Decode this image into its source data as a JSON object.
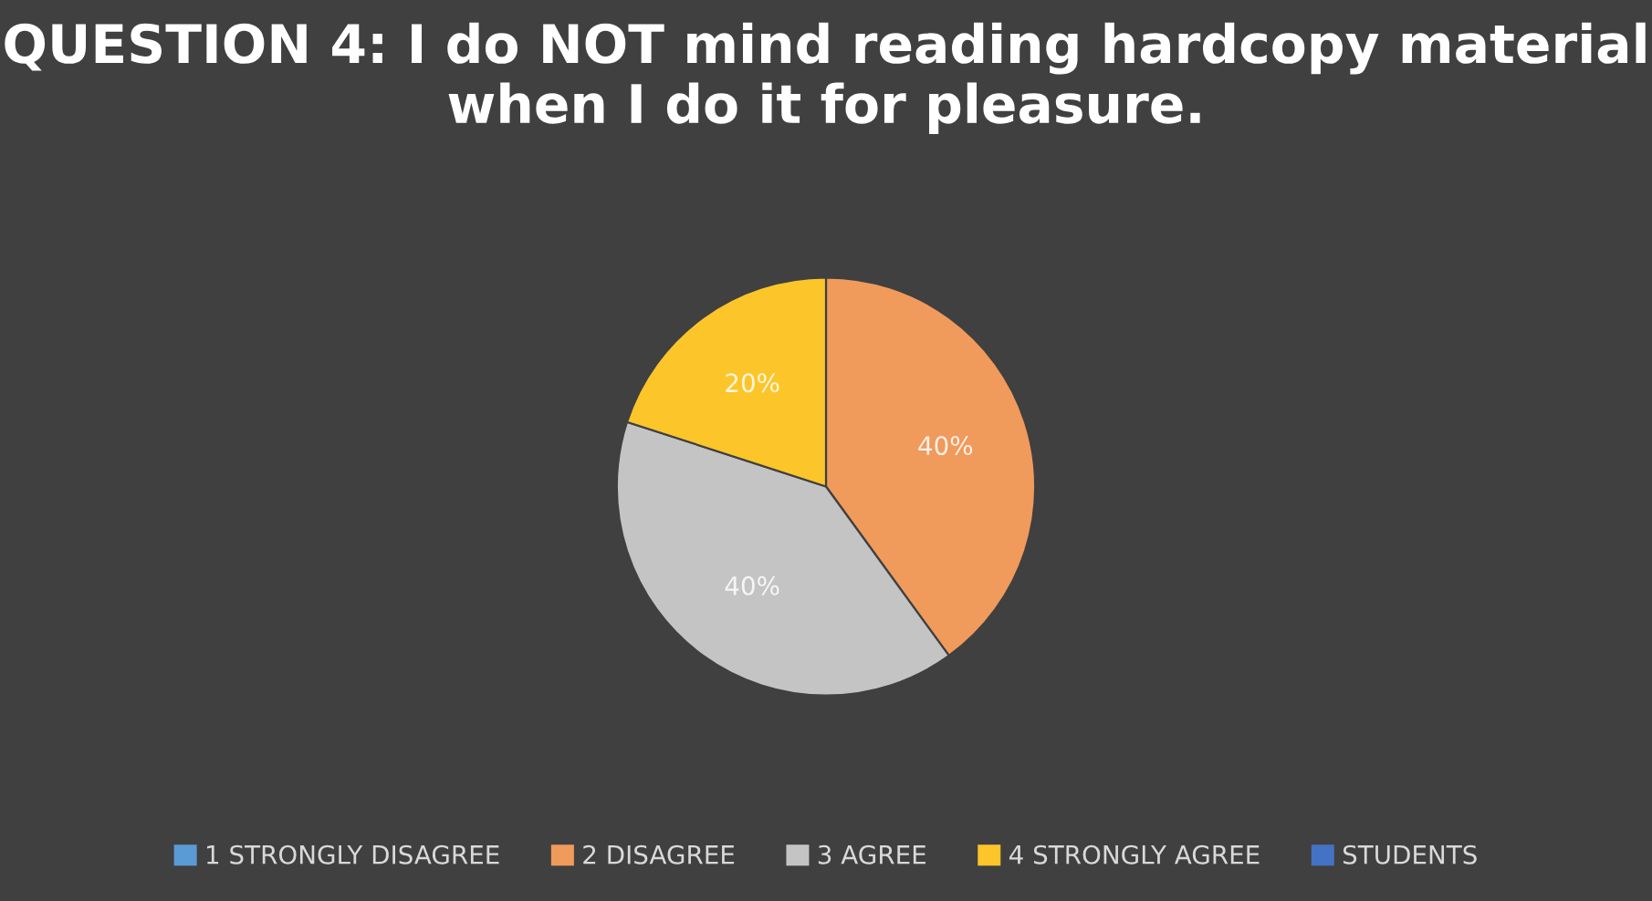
{
  "chart_data": {
    "type": "pie",
    "title": "QUESTION 4: I do NOT mind reading hardcopy material when I do it for pleasure.",
    "categories": [
      "1 STRONGLY DISAGREE",
      "2 DISAGREE",
      "3 AGREE",
      "4 STRONGLY AGREE",
      "STUDENTS"
    ],
    "values": [
      0,
      40,
      40,
      20,
      0
    ],
    "value_labels": [
      null,
      "40%",
      "40%",
      "20%",
      null
    ],
    "colors": [
      "#5b9bd5",
      "#f09a5c",
      "#c4c4c4",
      "#fcc52a",
      "#4472c4"
    ],
    "legend": "bottom"
  }
}
